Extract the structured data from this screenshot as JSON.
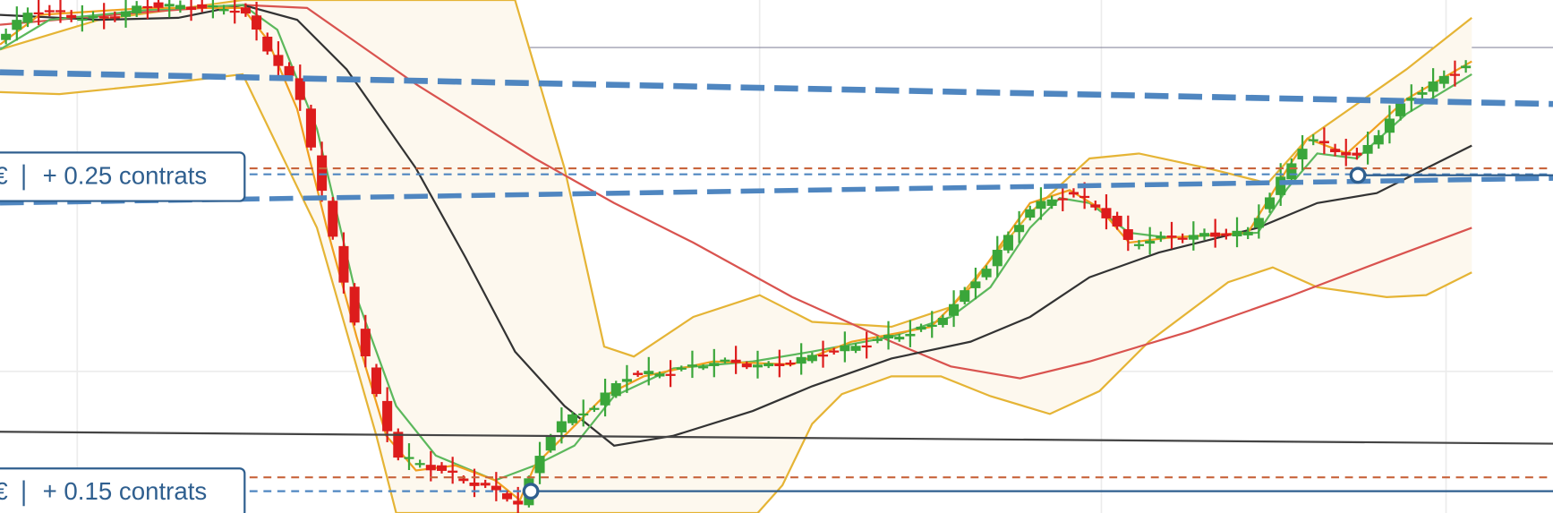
{
  "labels": [
    {
      "currency": "€",
      "text": "+ 0.25 contrats"
    },
    {
      "currency": "€",
      "text": "+ 0.15 contrats"
    }
  ]
}
